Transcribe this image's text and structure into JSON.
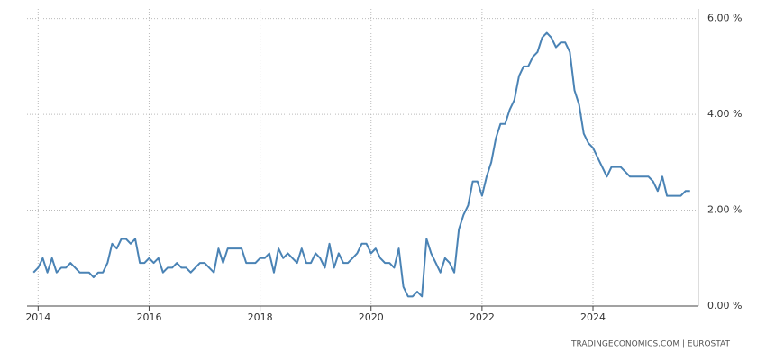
{
  "chart_data": {
    "type": "line",
    "source": "TRADINGECONOMICS.COM  |  EUROSTAT",
    "color": "#4a83b5",
    "grid": true,
    "x": [
      2013.917,
      2014.0,
      2014.083,
      2014.167,
      2014.25,
      2014.333,
      2014.417,
      2014.5,
      2014.583,
      2014.667,
      2014.75,
      2014.833,
      2014.917,
      2015.0,
      2015.083,
      2015.167,
      2015.25,
      2015.333,
      2015.417,
      2015.5,
      2015.583,
      2015.667,
      2015.75,
      2015.833,
      2015.917,
      2016.0,
      2016.083,
      2016.167,
      2016.25,
      2016.333,
      2016.417,
      2016.5,
      2016.583,
      2016.667,
      2016.75,
      2016.833,
      2016.917,
      2017.0,
      2017.083,
      2017.167,
      2017.25,
      2017.333,
      2017.417,
      2017.5,
      2017.583,
      2017.667,
      2017.75,
      2017.833,
      2017.917,
      2018.0,
      2018.083,
      2018.167,
      2018.25,
      2018.333,
      2018.417,
      2018.5,
      2018.583,
      2018.667,
      2018.75,
      2018.833,
      2018.917,
      2019.0,
      2019.083,
      2019.167,
      2019.25,
      2019.333,
      2019.417,
      2019.5,
      2019.583,
      2019.667,
      2019.75,
      2019.833,
      2019.917,
      2020.0,
      2020.083,
      2020.167,
      2020.25,
      2020.333,
      2020.417,
      2020.5,
      2020.583,
      2020.667,
      2020.75,
      2020.833,
      2020.917,
      2021.0,
      2021.083,
      2021.167,
      2021.25,
      2021.333,
      2021.417,
      2021.5,
      2021.583,
      2021.667,
      2021.75,
      2021.833,
      2021.917,
      2022.0,
      2022.083,
      2022.167,
      2022.25,
      2022.333,
      2022.417,
      2022.5,
      2022.583,
      2022.667,
      2022.75,
      2022.833,
      2022.917,
      2023.0,
      2023.083,
      2023.167,
      2023.25,
      2023.333,
      2023.417,
      2023.5,
      2023.583,
      2023.667,
      2023.75,
      2023.833,
      2023.917,
      2024.0,
      2024.083,
      2024.167,
      2024.25,
      2024.333,
      2024.417,
      2024.5,
      2024.583,
      2024.667,
      2024.75,
      2024.833,
      2024.917,
      2025.0,
      2025.083,
      2025.167,
      2025.25,
      2025.333,
      2025.417,
      2025.5,
      2025.583,
      2025.667,
      2025.75
    ],
    "values": [
      0.7,
      0.8,
      1.0,
      0.7,
      1.0,
      0.7,
      0.8,
      0.8,
      0.9,
      0.8,
      0.7,
      0.7,
      0.7,
      0.6,
      0.7,
      0.7,
      0.9,
      1.3,
      1.2,
      1.4,
      1.4,
      1.3,
      1.4,
      0.9,
      0.9,
      1.0,
      0.9,
      1.0,
      0.7,
      0.8,
      0.8,
      0.9,
      0.8,
      0.8,
      0.7,
      0.8,
      0.9,
      0.9,
      0.8,
      0.7,
      1.2,
      0.9,
      1.2,
      1.2,
      1.2,
      1.2,
      0.9,
      0.9,
      0.9,
      1.0,
      1.0,
      1.1,
      0.7,
      1.2,
      1.0,
      1.1,
      1.0,
      0.9,
      1.2,
      0.9,
      0.9,
      1.1,
      1.0,
      0.8,
      1.3,
      0.8,
      1.1,
      0.9,
      0.9,
      1.0,
      1.1,
      1.3,
      1.3,
      1.1,
      1.2,
      1.0,
      0.9,
      0.9,
      0.8,
      1.2,
      0.4,
      0.2,
      0.2,
      0.3,
      0.2,
      1.4,
      1.1,
      0.9,
      0.7,
      1.0,
      0.9,
      0.7,
      1.6,
      1.9,
      2.1,
      2.6,
      2.6,
      2.3,
      2.7,
      3.0,
      3.5,
      3.8,
      3.8,
      4.1,
      4.3,
      4.8,
      5.0,
      5.0,
      5.2,
      5.3,
      5.6,
      5.7,
      5.6,
      5.4,
      5.5,
      5.5,
      5.3,
      4.5,
      4.2,
      3.6,
      3.4,
      3.3,
      3.1,
      2.9,
      2.7,
      2.9,
      2.9,
      2.9,
      2.8,
      2.7,
      2.7,
      2.7,
      2.7,
      2.7,
      2.6,
      2.4,
      2.7,
      2.3,
      2.3,
      2.3,
      2.3,
      2.4,
      2.4
    ],
    "xlim": [
      2013.8,
      2025.9
    ],
    "xticks": [
      2014,
      2016,
      2018,
      2020,
      2022,
      2024
    ],
    "ylim": [
      0,
      6.2
    ],
    "yticks": [
      {
        "value": 0,
        "label": "0.00 %"
      },
      {
        "value": 2,
        "label": "2.00 %"
      },
      {
        "value": 4,
        "label": "4.00 %"
      },
      {
        "value": 6,
        "label": "6.00 %"
      }
    ]
  }
}
